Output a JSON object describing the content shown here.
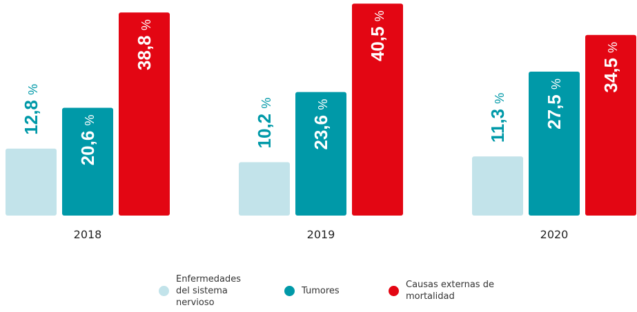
{
  "chart_data": {
    "type": "bar",
    "categories": [
      "2018",
      "2019",
      "2020"
    ],
    "series": [
      {
        "name": "Enfermedades del sistema nervioso",
        "color": "#c2e3ea",
        "values": [
          12.8,
          10.2,
          11.3
        ],
        "value_labels": [
          "12,8 %",
          "10,2 %",
          "11,3 %"
        ]
      },
      {
        "name": "Tumores",
        "color": "#0099a8",
        "values": [
          20.6,
          23.6,
          27.5
        ],
        "value_labels": [
          "20,6 %",
          "23,6 %",
          "27,5 %"
        ]
      },
      {
        "name": "Causas externas de mortalidad",
        "color": "#e30613",
        "values": [
          38.8,
          40.5,
          34.5
        ],
        "value_labels": [
          "38,8 %",
          "40,5 %",
          "34,5 %"
        ]
      }
    ]
  }
}
